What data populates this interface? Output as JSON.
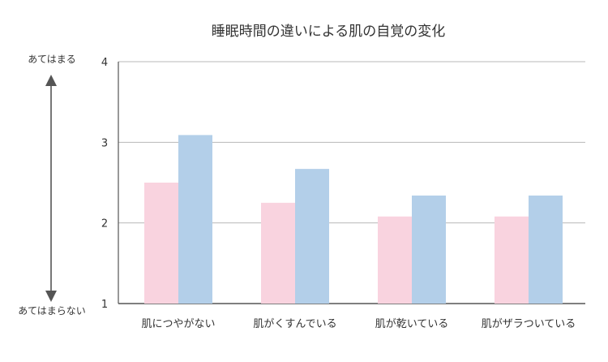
{
  "chart_data": {
    "type": "bar",
    "title": "睡眠時間の違いによる肌の自覚の変化",
    "categories": [
      "肌につやがない",
      "肌がくすんでいる",
      "肌が乾いている",
      "肌がザラついている"
    ],
    "series": [
      {
        "values": [
          2.5,
          2.25,
          2.08,
          2.08
        ],
        "color": "#f9d3df"
      },
      {
        "values": [
          3.09,
          2.67,
          2.34,
          2.34
        ],
        "color": "#b3cfe9"
      }
    ],
    "ylim": [
      1,
      4
    ],
    "yticks": [
      "1",
      "2",
      "3",
      "4"
    ],
    "grid": true,
    "scale_top_label": "あてはまる",
    "scale_bottom_label": "あてはまらない"
  }
}
